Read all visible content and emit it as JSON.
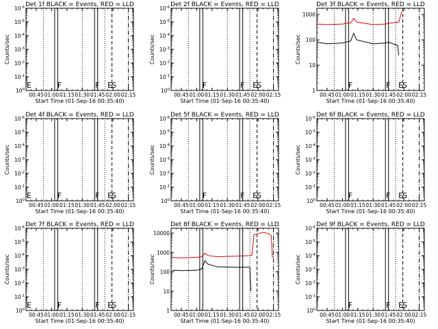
{
  "chart_data": [
    {
      "id": "det1f",
      "title": "Det 1f BLACK = Events, RED = LLD",
      "type": "line",
      "xlabel": "Start Time (01-Sep-16 00:35:40)",
      "ylabel": "Counts/sec",
      "x_ticks": [
        "00:45",
        "01:00",
        "01:15",
        "01:30",
        "01:45",
        "02:00",
        "02:15"
      ],
      "y_ticks": [
        "10<sup>0</sup>",
        "10<sup>-1</sup>",
        "10<sup>-2</sup>",
        "10<sup>-3</sup>",
        "10<sup>-4</sup>",
        "10<sup>-5</sup>",
        "10<sup>-6</sup>"
      ],
      "y_scale": "log",
      "series": [],
      "markers": [
        {
          "label": "E",
          "x": "00:35"
        },
        {
          "label": "F",
          "x": "01:05"
        },
        {
          "label": "F",
          "x": "01:42"
        },
        {
          "label": "E",
          "x": "01:54"
        },
        {
          "label": "S",
          "x": "01:58"
        }
      ]
    },
    {
      "id": "det2f",
      "title": "Det 2f BLACK = Events, RED = LLD",
      "type": "line",
      "xlabel": "Start Time (01-Sep-16 00:35:40)",
      "ylabel": "Counts/sec",
      "x_ticks": [
        "00:45",
        "01:00",
        "01:15",
        "01:30",
        "01:45",
        "02:00",
        "02:15"
      ],
      "y_ticks": [
        "10<sup>0</sup>",
        "10<sup>-1</sup>",
        "10<sup>-2</sup>",
        "10<sup>-3</sup>",
        "10<sup>-4</sup>",
        "10<sup>-5</sup>",
        "10<sup>-6</sup>"
      ],
      "y_scale": "log",
      "series": [],
      "markers": [
        {
          "label": "F",
          "x": "01:05"
        },
        {
          "label": "F",
          "x": "01:42"
        },
        {
          "label": "E",
          "x": "01:54"
        },
        {
          "label": "S",
          "x": "01:58"
        }
      ]
    },
    {
      "id": "det3f",
      "title": "Det 3f BLACK = Events, RED = LLD",
      "type": "line",
      "xlabel": "Start Time (01-Sep-16 00:35:40)",
      "ylabel": "Counts/sec",
      "x_ticks": [
        "00:45",
        "01:00",
        "01:15",
        "01:30",
        "01:45",
        "02:00",
        "02:15"
      ],
      "y_ticks": [
        "1",
        "10",
        "100",
        "1000"
      ],
      "y_scale": "log",
      "series": [
        {
          "color": "#e00000",
          "points": [
            [
              "00:36",
              420
            ],
            [
              "00:45",
              400
            ],
            [
              "01:00",
              420
            ],
            [
              "01:08",
              470
            ],
            [
              "01:11",
              700
            ],
            [
              "01:14",
              500
            ],
            [
              "01:30",
              400
            ],
            [
              "01:42",
              420
            ],
            [
              "01:45",
              450
            ],
            [
              "01:55",
              500
            ],
            [
              "01:58",
              1300
            ]
          ]
        },
        {
          "color": "#000000",
          "points": [
            [
              "00:36",
              80
            ],
            [
              "00:45",
              70
            ],
            [
              "01:00",
              75
            ],
            [
              "01:08",
              90
            ],
            [
              "01:11",
              180
            ],
            [
              "01:14",
              100
            ],
            [
              "01:30",
              70
            ],
            [
              "01:42",
              75
            ],
            [
              "01:45",
              80
            ],
            [
              "01:54",
              60
            ],
            [
              "01:55",
              25
            ]
          ]
        }
      ],
      "markers": [
        {
          "label": "F",
          "x": "01:05"
        },
        {
          "label": "F",
          "x": "01:42"
        },
        {
          "label": "E",
          "x": "01:54"
        },
        {
          "label": "S",
          "x": "01:58"
        }
      ]
    },
    {
      "id": "det4f",
      "title": "Det 4f BLACK = Events, RED = LLD",
      "type": "line",
      "xlabel": "Start Time (01-Sep-16 00:35:40)",
      "ylabel": "Counts/sec",
      "x_ticks": [
        "00:45",
        "01:00",
        "01:15",
        "01:30",
        "01:45",
        "02:00",
        "02:15"
      ],
      "y_ticks": [
        "10<sup>0</sup>",
        "10<sup>-1</sup>",
        "10<sup>-2</sup>",
        "10<sup>-3</sup>",
        "10<sup>-4</sup>",
        "10<sup>-5</sup>",
        "10<sup>-6</sup>"
      ],
      "y_scale": "log",
      "series": [],
      "markers": [
        {
          "label": "E",
          "x": "00:35"
        },
        {
          "label": "F",
          "x": "01:05"
        },
        {
          "label": "F",
          "x": "01:42"
        },
        {
          "label": "E",
          "x": "01:54"
        },
        {
          "label": "S",
          "x": "01:58"
        }
      ]
    },
    {
      "id": "det5f",
      "title": "Det 5f BLACK = Events, RED = LLD",
      "type": "line",
      "xlabel": "Start Time (01-Sep-16 00:35:40)",
      "ylabel": "Counts/sec",
      "x_ticks": [
        "00:45",
        "01:00",
        "01:15",
        "01:30",
        "01:45",
        "02:00",
        "02:15"
      ],
      "y_ticks": [
        "10<sup>0</sup>",
        "10<sup>-1</sup>",
        "10<sup>-2</sup>",
        "10<sup>-3</sup>",
        "10<sup>-4</sup>",
        "10<sup>-5</sup>",
        "10<sup>-6</sup>"
      ],
      "y_scale": "log",
      "series": [],
      "markers": [
        {
          "label": "F",
          "x": "01:05"
        },
        {
          "label": "F",
          "x": "01:42"
        },
        {
          "label": "E",
          "x": "01:54"
        },
        {
          "label": "S",
          "x": "01:58"
        }
      ]
    },
    {
      "id": "det6f",
      "title": "Det 6f BLACK = Events, RED = LLD",
      "type": "line",
      "xlabel": "Start Time (01-Sep-16 00:35:40)",
      "ylabel": "Counts/sec",
      "x_ticks": [
        "00:45",
        "01:00",
        "01:15",
        "01:30",
        "01:45",
        "02:00",
        "02:15"
      ],
      "y_ticks": [
        "10<sup>0</sup>",
        "10<sup>-1</sup>",
        "10<sup>-2</sup>",
        "10<sup>-3</sup>",
        "10<sup>-4</sup>",
        "10<sup>-5</sup>",
        "10<sup>-6</sup>"
      ],
      "y_scale": "log",
      "series": [],
      "markers": [
        {
          "label": "F",
          "x": "01:05"
        },
        {
          "label": "F",
          "x": "01:42"
        },
        {
          "label": "E",
          "x": "01:54"
        },
        {
          "label": "S",
          "x": "01:58"
        }
      ]
    },
    {
      "id": "det7f",
      "title": "Det 7f BLACK = Events, RED = LLD",
      "type": "line",
      "xlabel": "Start Time (01-Sep-16 00:35:40)",
      "ylabel": "Counts/sec",
      "x_ticks": [
        "00:45",
        "01:00",
        "01:15",
        "01:30",
        "01:45",
        "02:00",
        "02:15"
      ],
      "y_ticks": [
        "10<sup>0</sup>",
        "10<sup>-1</sup>",
        "10<sup>-2</sup>",
        "10<sup>-3</sup>",
        "10<sup>-4</sup>",
        "10<sup>-5</sup>",
        "10<sup>-6</sup>"
      ],
      "y_scale": "log",
      "series": [],
      "markers": [
        {
          "label": "E",
          "x": "00:35"
        },
        {
          "label": "F",
          "x": "01:05"
        },
        {
          "label": "F",
          "x": "01:42"
        },
        {
          "label": "E",
          "x": "01:54"
        },
        {
          "label": "S",
          "x": "01:58"
        }
      ]
    },
    {
      "id": "det8f",
      "title": "Det 8f BLACK = Events, RED = LLD",
      "type": "line",
      "xlabel": "Start Time (01-Sep-16 00:35:40)",
      "ylabel": "Counts/sec",
      "x_ticks": [
        "00:45",
        "01:00",
        "01:15",
        "01:30",
        "01:45",
        "02:00",
        "02:15"
      ],
      "y_ticks": [
        "1",
        "10",
        "100",
        "1000",
        "10000"
      ],
      "y_scale": "log",
      "series": [
        {
          "color": "#e00000",
          "points": [
            [
              "00:36",
              550
            ],
            [
              "00:45",
              520
            ],
            [
              "01:00",
              560
            ],
            [
              "01:05",
              600
            ],
            [
              "01:08",
              900
            ],
            [
              "01:11",
              700
            ],
            [
              "01:20",
              600
            ],
            [
              "01:40",
              650
            ],
            [
              "01:51",
              680
            ],
            [
              "01:54",
              720
            ],
            [
              "01:56",
              8000
            ],
            [
              "02:05",
              11000
            ],
            [
              "02:10",
              9500
            ],
            [
              "02:13",
              7000
            ],
            [
              "02:14",
              500
            ]
          ]
        },
        {
          "color": "#000000",
          "points": [
            [
              "00:36",
              120
            ],
            [
              "00:45",
              115
            ],
            [
              "01:00",
              120
            ],
            [
              "01:05",
              140
            ],
            [
              "01:08",
              380
            ],
            [
              "01:11",
              250
            ],
            [
              "01:20",
              180
            ],
            [
              "01:40",
              170
            ],
            [
              "01:51",
              175
            ],
            [
              "01:52",
              170
            ],
            [
              "01:53",
              10
            ]
          ]
        }
      ],
      "markers": []
    },
    {
      "id": "det9f",
      "title": "Det 9f BLACK = Events, RED = LLD",
      "type": "line",
      "xlabel": "Start Time (01-Sep-16 00:35:40)",
      "ylabel": "Counts/sec",
      "x_ticks": [
        "00:45",
        "01:00",
        "01:15",
        "01:30",
        "01:45",
        "02:00",
        "02:15"
      ],
      "y_ticks": [
        "10<sup>0</sup>",
        "10<sup>-1</sup>",
        "10<sup>-2</sup>",
        "10<sup>-3</sup>",
        "10<sup>-4</sup>",
        "10<sup>-5</sup>",
        "10<sup>-6</sup>"
      ],
      "y_scale": "log",
      "series": [],
      "markers": [
        {
          "label": "F",
          "x": "01:05"
        },
        {
          "label": "F",
          "x": "01:42"
        },
        {
          "label": "E",
          "x": "01:54"
        },
        {
          "label": "S",
          "x": "01:58"
        }
      ]
    }
  ]
}
